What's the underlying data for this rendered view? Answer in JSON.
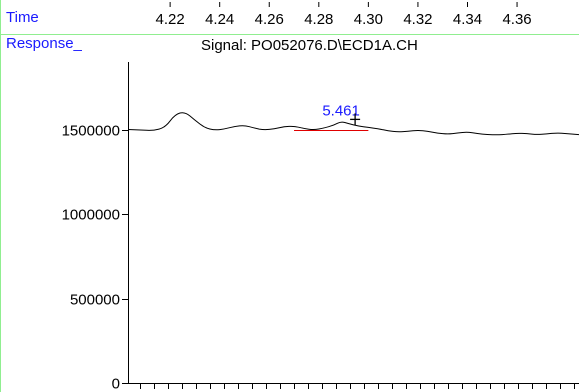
{
  "header": {
    "time_label": "Time",
    "response_label": "Response_"
  },
  "colors": {
    "frame": "#90ee90",
    "label_blue": "#1a1aff",
    "trace": "#000000",
    "baseline": "#e00000"
  },
  "chart_data": {
    "type": "line",
    "title": "Signal: PO052076.D\\ECD1A.CH",
    "time_ticks": [
      "4.22",
      "4.24",
      "4.26",
      "4.28",
      "4.30",
      "4.32",
      "4.34",
      "4.36"
    ],
    "x_range": [
      4.203,
      4.385
    ],
    "ylim": [
      0,
      2000000
    ],
    "y_ticks": [
      {
        "value": 0,
        "label": "0"
      },
      {
        "value": 500000,
        "label": "500000"
      },
      {
        "value": 1000000,
        "label": "1000000"
      },
      {
        "value": 1500000,
        "label": "1500000"
      }
    ],
    "series": [
      {
        "x": [
          4.203,
          4.208,
          4.213,
          4.218,
          4.222,
          4.226,
          4.23,
          4.234,
          4.238,
          4.242,
          4.246,
          4.25,
          4.254,
          4.258,
          4.262,
          4.266,
          4.27,
          4.274,
          4.278,
          4.282,
          4.286,
          4.289,
          4.292,
          4.296,
          4.3,
          4.304,
          4.308,
          4.312,
          4.316,
          4.32,
          4.324,
          4.328,
          4.332,
          4.336,
          4.34,
          4.344,
          4.348,
          4.352,
          4.356,
          4.36,
          4.364,
          4.368,
          4.372,
          4.376,
          4.38,
          4.385
        ],
        "y": [
          1500000,
          1498000,
          1493000,
          1512000,
          1590000,
          1605000,
          1555000,
          1510000,
          1496000,
          1503000,
          1518000,
          1525000,
          1508000,
          1497000,
          1504000,
          1517000,
          1520000,
          1506000,
          1498000,
          1508000,
          1525000,
          1548000,
          1535000,
          1520000,
          1512000,
          1504000,
          1492000,
          1485000,
          1490000,
          1496000,
          1490000,
          1478000,
          1473000,
          1479000,
          1485000,
          1476000,
          1470000,
          1468000,
          1472000,
          1478000,
          1476000,
          1470000,
          1474000,
          1480000,
          1476000,
          1470000
        ]
      }
    ],
    "peak": {
      "label": "5.461",
      "apex_time": 4.289,
      "baseline_start_time": 4.27,
      "baseline_end_time": 4.3,
      "baseline_value": 1500000
    }
  }
}
